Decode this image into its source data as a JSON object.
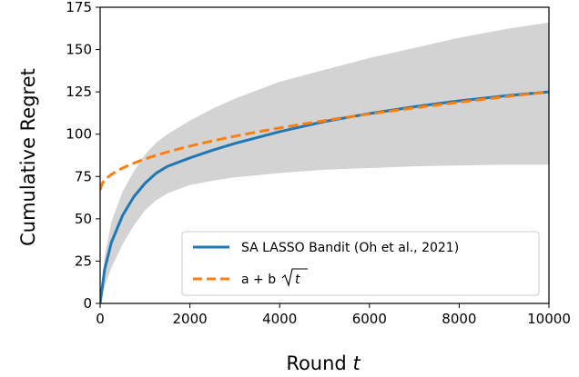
{
  "chart_data": {
    "type": "line",
    "xlabel": "Round",
    "xlabel_var": "t",
    "ylabel": "Cumulative Regret",
    "xlim": [
      0,
      10000
    ],
    "ylim": [
      0,
      175
    ],
    "xticks": [
      0,
      2000,
      4000,
      6000,
      8000,
      10000
    ],
    "yticks": [
      0,
      25,
      50,
      75,
      100,
      125,
      150,
      175
    ],
    "grid": false,
    "legend_position": "bottom-right",
    "x": [
      0,
      100,
      250,
      500,
      750,
      1000,
      1250,
      1500,
      2000,
      2500,
      3000,
      4000,
      5000,
      6000,
      7000,
      8000,
      9000,
      10000
    ],
    "series": [
      {
        "name": "SA LASSO Bandit (Oh et al., 2021)",
        "color": "#1f77b4",
        "style": "solid",
        "values": [
          0,
          20,
          36,
          52,
          63,
          71,
          77,
          81,
          86,
          90.5,
          94.5,
          101.5,
          107.5,
          112.2,
          116.2,
          119.7,
          122.6,
          125
        ],
        "band_lower": [
          0,
          10,
          21,
          35,
          46,
          55,
          61,
          65,
          70,
          72.5,
          74.5,
          77,
          79,
          80,
          81,
          81.5,
          82,
          82
        ],
        "band_upper": [
          0,
          28,
          48,
          66,
          78,
          88,
          95,
          100,
          108,
          115,
          121,
          131,
          138,
          145,
          151,
          157,
          162,
          166
        ],
        "band_color": "#d3d3d3"
      },
      {
        "name_prefix": "a + b",
        "name_sqrt_arg": "t",
        "color": "#ff7f0e",
        "style": "dashed",
        "a": 67,
        "b": 0.58
      }
    ]
  }
}
